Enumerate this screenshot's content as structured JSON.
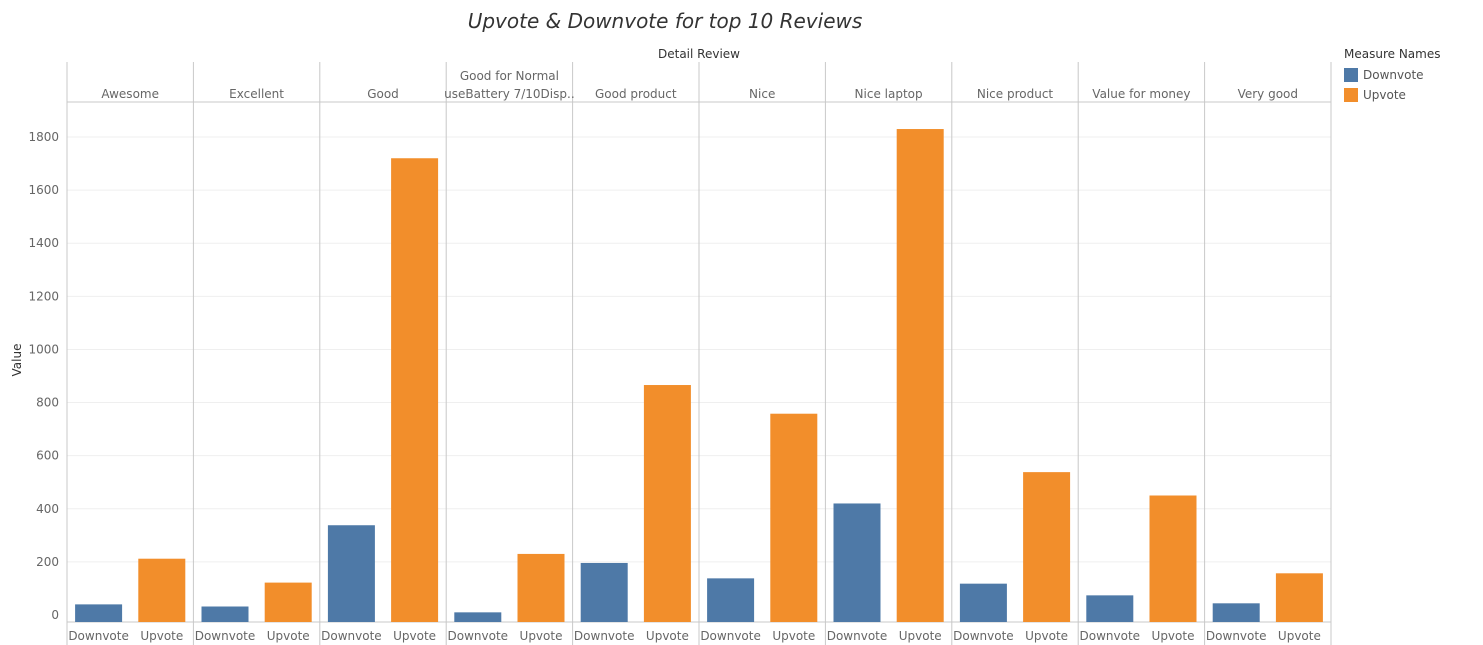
{
  "chart_data": {
    "type": "bar",
    "title": "Upvote & Downvote for top 10 Reviews",
    "column_header": "Detail Review",
    "ylabel": "Value",
    "ylim": [
      0,
      1900
    ],
    "yticks": [
      0,
      200,
      400,
      600,
      800,
      1000,
      1200,
      1400,
      1600,
      1800
    ],
    "grid": true,
    "legend_title": "Measure Names",
    "legend_position": "top-right",
    "categories": [
      [
        "Awesome"
      ],
      [
        "Excellent"
      ],
      [
        "Good"
      ],
      [
        "Good for Normal",
        "useBattery 7/10Disp.."
      ],
      [
        "Good product"
      ],
      [
        "Nice"
      ],
      [
        "Nice laptop"
      ],
      [
        "Nice product"
      ],
      [
        "Value for money"
      ],
      [
        "Very good"
      ]
    ],
    "series": [
      {
        "name": "Downvote",
        "color": "#4e79a7",
        "values": [
          40,
          32,
          338,
          10,
          196,
          138,
          420,
          118,
          74,
          44
        ]
      },
      {
        "name": "Upvote",
        "color": "#f28e2b",
        "values": [
          212,
          122,
          1720,
          230,
          866,
          758,
          1830,
          538,
          450,
          157
        ]
      }
    ]
  }
}
